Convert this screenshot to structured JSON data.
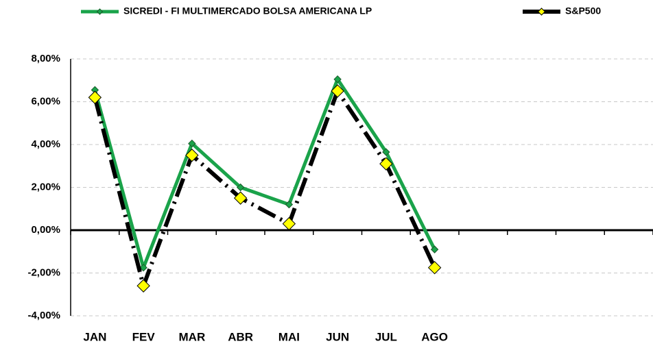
{
  "chart_data": {
    "type": "line",
    "categories": [
      "JAN",
      "FEV",
      "MAR",
      "ABR",
      "MAI",
      "JUN",
      "JUL",
      "AGO",
      null,
      null,
      null,
      null
    ],
    "series": [
      {
        "name": "SICREDI - FI MULTIMERCADO BOLSA AMERICANA LP",
        "color": "#1aa34a",
        "marker_color": "#1aa34a",
        "values": [
          6.55,
          -1.75,
          4.05,
          2.0,
          1.2,
          7.05,
          3.65,
          -0.9,
          null,
          null,
          null,
          null
        ]
      },
      {
        "name": "S&P500",
        "color": "#000000",
        "marker_color": "#ffff00",
        "values": [
          6.2,
          -2.6,
          3.5,
          1.5,
          0.3,
          6.5,
          3.1,
          -1.75,
          null,
          null,
          null,
          null
        ]
      }
    ],
    "ylim": [
      -4,
      8
    ],
    "yticks": [
      {
        "value": -4,
        "label": "-4,00%"
      },
      {
        "value": -2,
        "label": "-2,00%"
      },
      {
        "value": 0,
        "label": "0,00%"
      },
      {
        "value": 2,
        "label": "2,00%"
      },
      {
        "value": 4,
        "label": "4,00%"
      },
      {
        "value": 6,
        "label": "6,00%"
      },
      {
        "value": 8,
        "label": "8,00%"
      }
    ],
    "grid": true
  }
}
